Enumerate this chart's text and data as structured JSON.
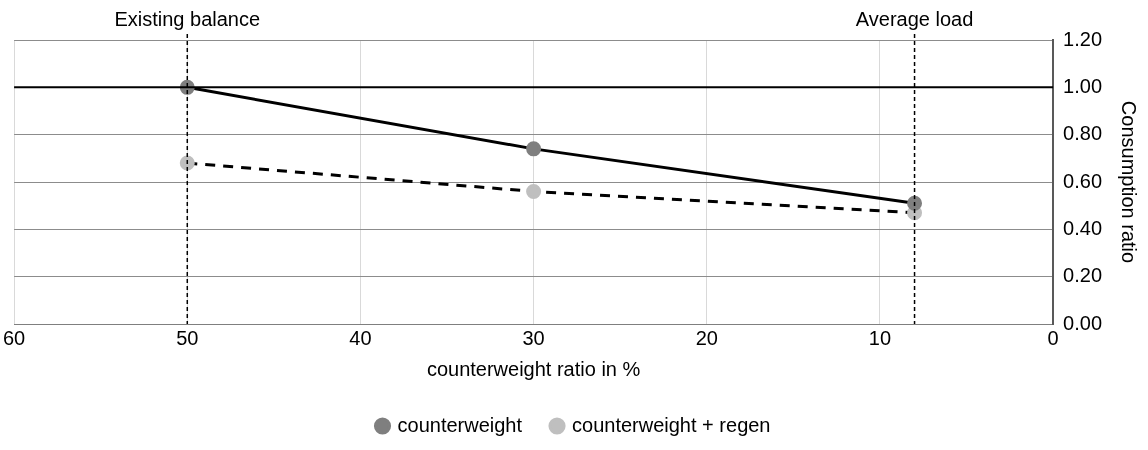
{
  "chart_data": {
    "type": "line",
    "xlabel": "counterweight ratio in %",
    "ylabel": "Consumption ratio",
    "xlim": [
      60,
      0
    ],
    "xticks": [
      60,
      50,
      40,
      30,
      20,
      10,
      0
    ],
    "ylim": [
      0,
      1.2
    ],
    "yticks": [
      {
        "value": 0,
        "label": "0.00"
      },
      {
        "value": 0.2,
        "label": "0.20"
      },
      {
        "value": 0.4,
        "label": "0.40"
      },
      {
        "value": 0.6,
        "label": "0.60"
      },
      {
        "value": 0.8,
        "label": "0.80"
      },
      {
        "value": 1,
        "label": "1.00"
      },
      {
        "value": 1.2,
        "label": "1.20"
      }
    ],
    "grid": true,
    "legend": "bottom",
    "marker": "circle",
    "x": [
      50,
      30,
      8
    ],
    "series": [
      {
        "name": "counterweight",
        "color": "#7f7f7f",
        "values": [
          1.0,
          0.74,
          0.51
        ],
        "line_style": "solid"
      },
      {
        "name": "counterweight + regen",
        "color": "#bfbfbf",
        "values": [
          0.68,
          0.56,
          0.47
        ],
        "line_style": "dashed"
      }
    ],
    "ref_lines": [
      {
        "axis": "x",
        "value": 50,
        "label": "Existing balance",
        "color": "#000000",
        "line_style": "dashed"
      },
      {
        "axis": "x",
        "value": 8,
        "label": "Average load",
        "color": "#000000",
        "line_style": "dashed"
      },
      {
        "axis": "y",
        "value": 1,
        "color": "#000000",
        "line_style": "solid"
      }
    ]
  }
}
